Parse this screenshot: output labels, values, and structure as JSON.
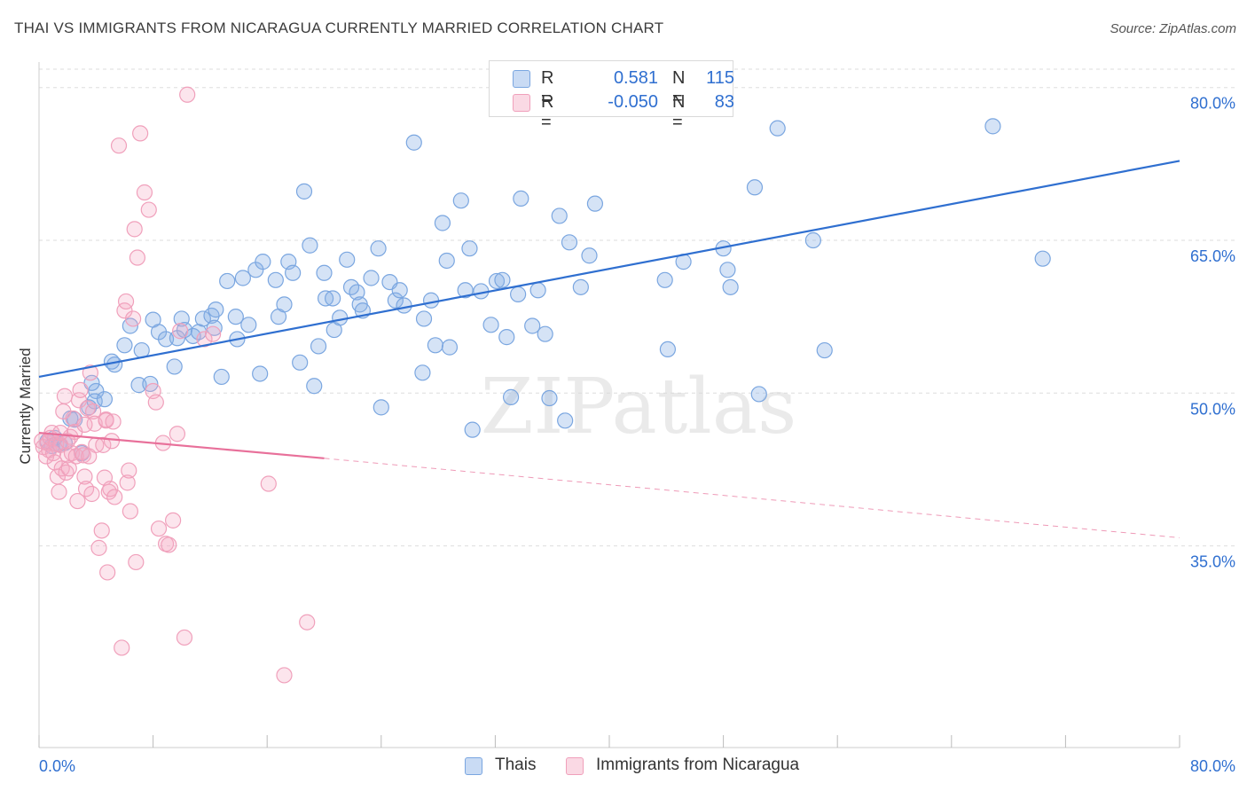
{
  "title": "THAI VS IMMIGRANTS FROM NICARAGUA CURRENTLY MARRIED CORRELATION CHART",
  "source": "Source: ZipAtlas.com",
  "watermark": "ZIPatlas",
  "colors": {
    "blue": "#7aa6e0",
    "blue_fill": "rgba(135,175,230,0.35)",
    "blue_line": "#2f6fd0",
    "pink": "#f0a0bb",
    "pink_fill": "rgba(245,170,195,0.30)",
    "pink_line": "#e8709a",
    "grid": "#dddddd",
    "axis_text": "#2f6fd0"
  },
  "legend": {
    "rows": [
      {
        "r_label": "R =",
        "r_value": "0.581",
        "n_label": "N =",
        "n_value": "115"
      },
      {
        "r_label": "R =",
        "r_value": "-0.050",
        "n_label": "N =",
        "n_value": "83"
      }
    ]
  },
  "bottom_legend": {
    "thais": "Thais",
    "nicaragua": "Immigrants from Nicaragua"
  },
  "chart_data": {
    "type": "scatter",
    "title": "THAI VS IMMIGRANTS FROM NICARAGUA CURRENTLY MARRIED CORRELATION CHART",
    "xlabel": "",
    "ylabel": "Currently Married",
    "xlim": [
      0,
      80
    ],
    "ylim": [
      15.2,
      82.5
    ],
    "x_tick_labels": [
      "0.0%",
      "80.0%"
    ],
    "y_ticks": [
      35,
      50,
      65,
      80
    ],
    "y_tick_labels": [
      "35.0%",
      "50.0%",
      "65.0%",
      "80.0%"
    ],
    "grid": true,
    "series": [
      {
        "name": "Thais",
        "R": 0.581,
        "N": 115,
        "trend": {
          "x0": 0,
          "y0": 51.6,
          "x1": 80,
          "y1": 72.8
        },
        "points": [
          [
            0.6,
            45.3
          ],
          [
            0.9,
            44.8
          ],
          [
            1.1,
            45.6
          ],
          [
            1.4,
            45.0
          ],
          [
            1.8,
            45.1
          ],
          [
            2.2,
            47.5
          ],
          [
            2.5,
            47.4
          ],
          [
            3.0,
            44.1
          ],
          [
            3.5,
            48.6
          ],
          [
            4.0,
            50.2
          ],
          [
            3.7,
            51.0
          ],
          [
            3.9,
            49.2
          ],
          [
            4.6,
            49.4
          ],
          [
            5.3,
            52.8
          ],
          [
            5.1,
            53.1
          ],
          [
            6.0,
            54.7
          ],
          [
            6.4,
            56.6
          ],
          [
            7.2,
            54.2
          ],
          [
            7.0,
            50.8
          ],
          [
            7.8,
            50.9
          ],
          [
            8.0,
            57.2
          ],
          [
            8.4,
            56.0
          ],
          [
            8.9,
            55.3
          ],
          [
            9.5,
            52.6
          ],
          [
            9.7,
            55.4
          ],
          [
            10.0,
            57.3
          ],
          [
            10.2,
            56.2
          ],
          [
            10.8,
            55.6
          ],
          [
            11.2,
            56.0
          ],
          [
            11.5,
            57.3
          ],
          [
            12.1,
            57.6
          ],
          [
            12.3,
            56.4
          ],
          [
            12.4,
            58.2
          ],
          [
            12.8,
            51.6
          ],
          [
            13.2,
            61.0
          ],
          [
            13.8,
            57.5
          ],
          [
            13.9,
            55.3
          ],
          [
            14.3,
            61.3
          ],
          [
            14.7,
            56.7
          ],
          [
            15.2,
            62.1
          ],
          [
            15.5,
            51.9
          ],
          [
            15.7,
            62.9
          ],
          [
            16.6,
            61.1
          ],
          [
            16.8,
            57.5
          ],
          [
            17.2,
            58.7
          ],
          [
            17.5,
            62.9
          ],
          [
            17.8,
            61.8
          ],
          [
            18.3,
            53.0
          ],
          [
            18.6,
            69.8
          ],
          [
            19.0,
            64.5
          ],
          [
            19.3,
            50.7
          ],
          [
            19.6,
            54.6
          ],
          [
            20.0,
            61.8
          ],
          [
            20.1,
            59.3
          ],
          [
            20.6,
            59.3
          ],
          [
            20.7,
            56.2
          ],
          [
            21.1,
            57.4
          ],
          [
            21.6,
            63.1
          ],
          [
            21.9,
            60.4
          ],
          [
            22.3,
            59.9
          ],
          [
            22.5,
            58.7
          ],
          [
            22.7,
            58.1
          ],
          [
            23.3,
            61.3
          ],
          [
            23.8,
            64.2
          ],
          [
            24.0,
            48.6
          ],
          [
            24.6,
            60.9
          ],
          [
            25.0,
            59.1
          ],
          [
            25.3,
            60.1
          ],
          [
            25.6,
            58.6
          ],
          [
            26.3,
            74.6
          ],
          [
            26.9,
            52.0
          ],
          [
            27.0,
            57.3
          ],
          [
            27.5,
            59.1
          ],
          [
            27.8,
            54.7
          ],
          [
            28.3,
            66.7
          ],
          [
            28.6,
            63.0
          ],
          [
            28.8,
            54.5
          ],
          [
            29.6,
            68.9
          ],
          [
            29.9,
            60.1
          ],
          [
            30.2,
            64.2
          ],
          [
            30.4,
            46.4
          ],
          [
            31.0,
            60.0
          ],
          [
            31.7,
            56.7
          ],
          [
            32.1,
            61.0
          ],
          [
            32.5,
            61.1
          ],
          [
            32.8,
            55.5
          ],
          [
            33.1,
            49.6
          ],
          [
            33.6,
            59.7
          ],
          [
            33.8,
            69.1
          ],
          [
            34.6,
            56.6
          ],
          [
            35.0,
            60.1
          ],
          [
            35.5,
            55.8
          ],
          [
            35.8,
            49.5
          ],
          [
            36.5,
            67.4
          ],
          [
            36.9,
            47.3
          ],
          [
            37.2,
            64.8
          ],
          [
            38.0,
            60.4
          ],
          [
            38.6,
            63.5
          ],
          [
            39.0,
            68.6
          ],
          [
            43.9,
            61.1
          ],
          [
            44.1,
            54.3
          ],
          [
            45.2,
            62.9
          ],
          [
            48.0,
            64.2
          ],
          [
            48.3,
            62.1
          ],
          [
            48.5,
            60.4
          ],
          [
            50.2,
            70.2
          ],
          [
            50.5,
            49.9
          ],
          [
            51.8,
            76.0
          ],
          [
            54.3,
            65.0
          ],
          [
            55.1,
            54.2
          ],
          [
            66.9,
            76.2
          ],
          [
            70.4,
            63.2
          ]
        ]
      },
      {
        "name": "Immigrants from Nicaragua",
        "R": -0.05,
        "N": 83,
        "trend_solid": {
          "x0": 0,
          "y0": 46.1,
          "x1": 20,
          "y1": 43.6
        },
        "trend_dashed": {
          "x0": 20,
          "y0": 43.6,
          "x1": 80,
          "y1": 35.8
        },
        "points": [
          [
            0.2,
            45.3
          ],
          [
            0.3,
            44.7
          ],
          [
            0.5,
            43.8
          ],
          [
            0.6,
            45.1
          ],
          [
            0.7,
            44.4
          ],
          [
            0.8,
            45.6
          ],
          [
            0.9,
            46.1
          ],
          [
            1.0,
            44.1
          ],
          [
            1.1,
            43.2
          ],
          [
            1.2,
            45.0
          ],
          [
            1.3,
            41.8
          ],
          [
            1.4,
            40.3
          ],
          [
            1.5,
            44.9
          ],
          [
            1.6,
            42.6
          ],
          [
            1.7,
            48.2
          ],
          [
            1.8,
            49.7
          ],
          [
            1.9,
            42.2
          ],
          [
            2.0,
            43.9
          ],
          [
            2.1,
            42.6
          ],
          [
            2.2,
            45.7
          ],
          [
            2.3,
            44.1
          ],
          [
            2.4,
            47.5
          ],
          [
            2.5,
            46.2
          ],
          [
            2.6,
            43.8
          ],
          [
            2.7,
            39.4
          ],
          [
            2.8,
            49.3
          ],
          [
            2.9,
            50.3
          ],
          [
            3.0,
            44.2
          ],
          [
            3.1,
            43.9
          ],
          [
            3.2,
            41.8
          ],
          [
            3.3,
            40.6
          ],
          [
            3.4,
            48.5
          ],
          [
            3.5,
            43.8
          ],
          [
            3.6,
            52.0
          ],
          [
            3.7,
            40.1
          ],
          [
            3.8,
            48.2
          ],
          [
            3.9,
            47.0
          ],
          [
            4.0,
            44.9
          ],
          [
            4.2,
            34.8
          ],
          [
            4.4,
            36.5
          ],
          [
            4.5,
            44.9
          ],
          [
            4.6,
            41.7
          ],
          [
            4.7,
            47.4
          ],
          [
            4.8,
            32.4
          ],
          [
            4.9,
            40.3
          ],
          [
            5.0,
            40.6
          ],
          [
            5.1,
            45.3
          ],
          [
            5.3,
            39.8
          ],
          [
            5.6,
            74.3
          ],
          [
            5.8,
            25.0
          ],
          [
            6.0,
            58.1
          ],
          [
            6.1,
            59.0
          ],
          [
            6.2,
            41.2
          ],
          [
            6.3,
            42.4
          ],
          [
            6.4,
            38.4
          ],
          [
            6.6,
            57.3
          ],
          [
            6.8,
            33.4
          ],
          [
            6.7,
            66.1
          ],
          [
            6.9,
            63.3
          ],
          [
            7.1,
            75.5
          ],
          [
            7.4,
            69.7
          ],
          [
            7.7,
            68.0
          ],
          [
            8.0,
            50.2
          ],
          [
            8.2,
            49.1
          ],
          [
            8.4,
            36.7
          ],
          [
            8.7,
            45.1
          ],
          [
            8.9,
            35.2
          ],
          [
            9.1,
            35.1
          ],
          [
            9.4,
            37.5
          ],
          [
            9.7,
            46.0
          ],
          [
            9.9,
            56.1
          ],
          [
            10.2,
            26.0
          ],
          [
            10.4,
            79.3
          ],
          [
            11.6,
            55.3
          ],
          [
            12.2,
            55.8
          ],
          [
            16.1,
            41.1
          ],
          [
            17.2,
            22.3
          ],
          [
            18.8,
            27.5
          ],
          [
            4.7,
            47.3
          ],
          [
            5.2,
            47.2
          ],
          [
            3.2,
            46.9
          ],
          [
            2.0,
            45.3
          ],
          [
            1.5,
            46.1
          ]
        ]
      }
    ]
  }
}
